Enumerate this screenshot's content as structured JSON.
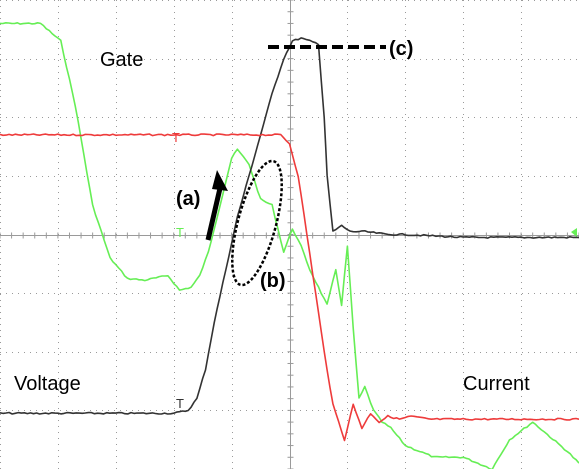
{
  "labels": {
    "gate": "Gate",
    "voltage": "Voltage",
    "current": "Current",
    "a": "(a)",
    "b": "(b)",
    "c": "(c)",
    "trigger": "T"
  },
  "colors": {
    "gate": "#66ee55",
    "voltage": "#333333",
    "current": "#ee3b3b",
    "grid": "#9a9a9a",
    "annotation": "#000000"
  },
  "chart_data": {
    "type": "line",
    "title": "",
    "xlabel": "",
    "ylabel": "",
    "grid": true,
    "grid_divisions": {
      "x": 10,
      "y": 8
    },
    "xlim": [
      0,
      10
    ],
    "ylim": [
      -4,
      4
    ],
    "series": [
      {
        "name": "Gate",
        "x": [
          0,
          0.7,
          1.05,
          1.3,
          1.6,
          1.9,
          2.2,
          2.5,
          2.9,
          3.1,
          3.3,
          3.45,
          3.6,
          3.8,
          4.0,
          4.1,
          4.3,
          4.5,
          4.7,
          4.9,
          5.05,
          5.2,
          5.35,
          5.5,
          5.65,
          5.8,
          5.9,
          6.0,
          6.1,
          6.2,
          6.3,
          6.45,
          6.6,
          6.75,
          7.0,
          7.5,
          8.0,
          8.5,
          8.8,
          9.2,
          9.5,
          9.8,
          10
        ],
        "values": [
          3.6,
          3.6,
          3.3,
          2.2,
          0.5,
          -0.4,
          -0.75,
          -0.78,
          -0.7,
          -0.95,
          -0.9,
          -0.7,
          -0.3,
          0.5,
          1.3,
          1.45,
          1.2,
          0.6,
          0.5,
          -0.3,
          0.1,
          -0.2,
          -0.6,
          -0.9,
          -1.2,
          -0.6,
          -1.2,
          -0.2,
          -1.6,
          -2.8,
          -2.6,
          -3.0,
          -3.2,
          -3.3,
          -3.6,
          -3.8,
          -3.8,
          -4.0,
          -3.5,
          -3.2,
          -3.45,
          -3.7,
          -3.9
        ]
      },
      {
        "name": "Voltage",
        "x": [
          0,
          1.0,
          2.0,
          3.0,
          3.25,
          3.4,
          3.55,
          3.7,
          3.9,
          4.1,
          4.3,
          4.5,
          4.7,
          4.9,
          5.05,
          5.2,
          5.35,
          5.5,
          5.6,
          5.65,
          5.75,
          5.9,
          6.05,
          6.3,
          6.7,
          7.0,
          8.0,
          9.0,
          10
        ],
        "values": [
          -3.05,
          -3.05,
          -3.05,
          -3.05,
          -3.0,
          -2.8,
          -2.3,
          -1.5,
          -0.6,
          0.3,
          1.0,
          1.7,
          2.4,
          3.0,
          3.3,
          3.35,
          3.3,
          3.25,
          2.0,
          1.0,
          0.05,
          0.15,
          0.05,
          0.05,
          0.0,
          0.0,
          -0.05,
          -0.05,
          -0.05
        ]
      },
      {
        "name": "Current",
        "x": [
          0,
          1.0,
          2.0,
          3.0,
          4.0,
          4.85,
          5.0,
          5.15,
          5.3,
          5.45,
          5.6,
          5.75,
          5.95,
          6.1,
          6.25,
          6.4,
          6.55,
          6.7,
          6.9,
          7.1,
          7.4,
          8.0,
          9.0,
          10
        ],
        "values": [
          1.7,
          1.7,
          1.7,
          1.7,
          1.7,
          1.7,
          1.55,
          1.0,
          0.0,
          -1.0,
          -2.0,
          -2.9,
          -3.5,
          -2.9,
          -3.3,
          -3.05,
          -3.2,
          -3.1,
          -3.15,
          -3.1,
          -3.15,
          -3.15,
          -3.15,
          -3.15
        ]
      }
    ]
  }
}
